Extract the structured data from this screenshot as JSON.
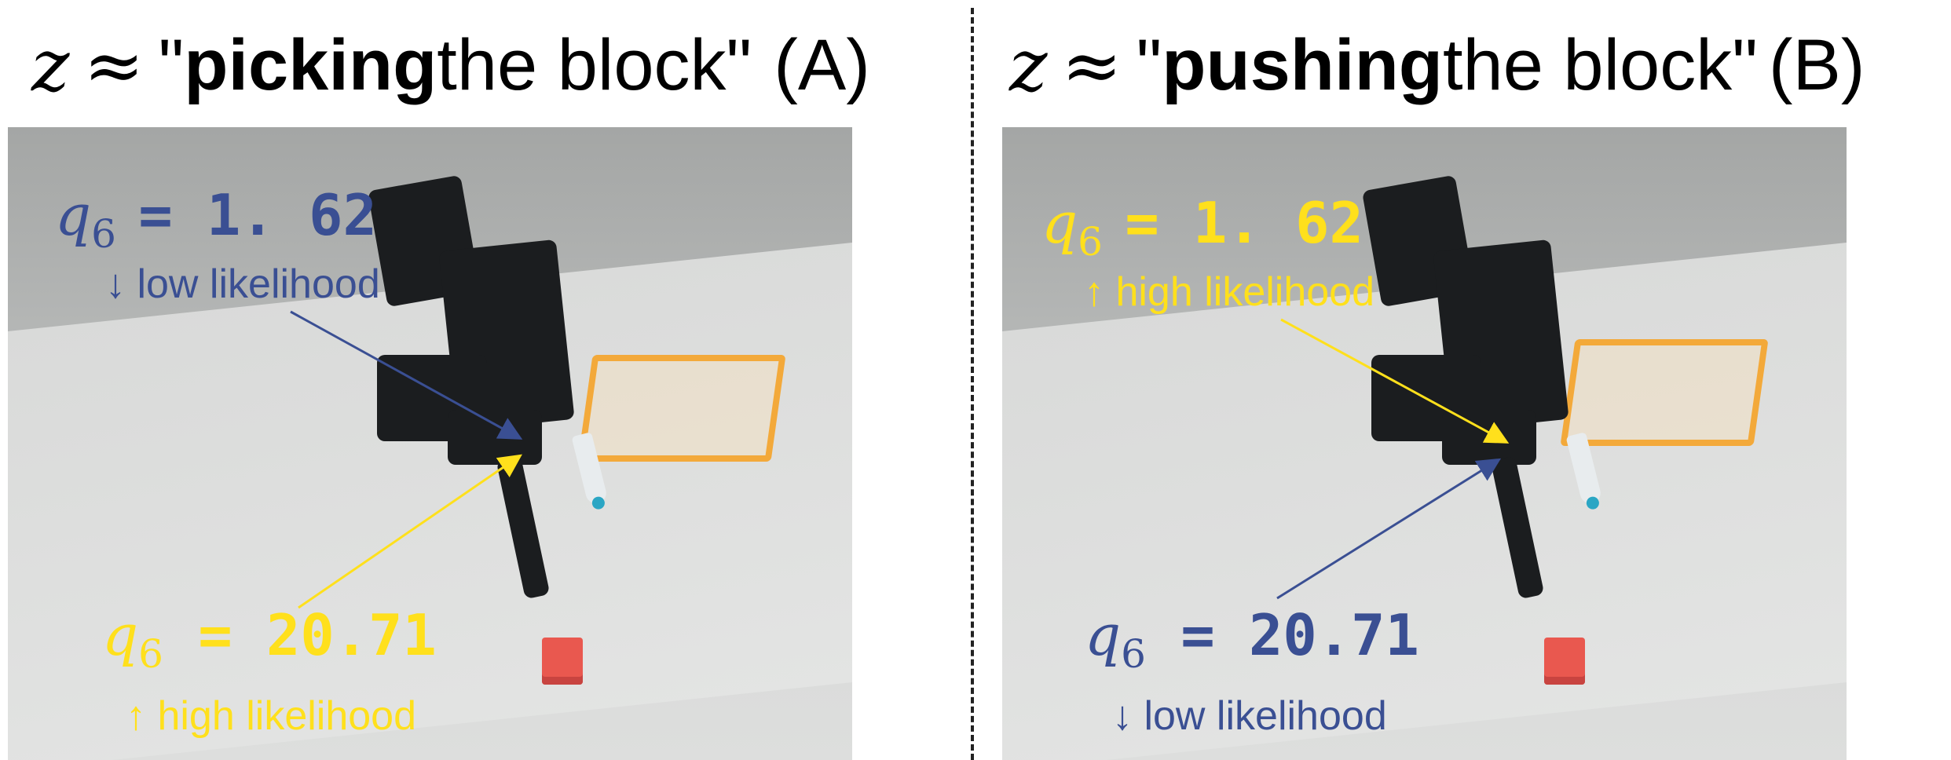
{
  "panel_a": {
    "title": {
      "z": "z",
      "approx": "≈",
      "quote_open": "\"",
      "bold_word": "picking",
      "rest": " the block\"",
      "tag": "(A)"
    },
    "top_annotation": {
      "q_symbol": "q",
      "q_subscript": "6",
      "value": "= 1. 62",
      "arrow": "↓",
      "likelihood": "low likelihood",
      "color": "#3a4f93"
    },
    "bottom_annotation": {
      "q_symbol": "q",
      "q_subscript": "6",
      "value": "= 20.71",
      "arrow": "↑",
      "likelihood": "high likelihood",
      "color": "#ffe01c"
    }
  },
  "panel_b": {
    "title": {
      "z": "z",
      "approx": "≈",
      "quote_open": "\"",
      "bold_word": "pushing",
      "rest": " the block\"",
      "tag": "(B)"
    },
    "top_annotation": {
      "q_symbol": "q",
      "q_subscript": "6",
      "value": "= 1. 62",
      "arrow": "↑",
      "likelihood": "high likelihood",
      "color": "#ffe01c"
    },
    "bottom_annotation": {
      "q_symbol": "q",
      "q_subscript": "6",
      "value": "= 20.71",
      "arrow": "↓",
      "likelihood": "low likelihood",
      "color": "#3a4f93"
    }
  },
  "colors": {
    "low": "#3a4f93",
    "high": "#ffe01c",
    "tray": "#f3a93a",
    "block": "#e9584f"
  }
}
